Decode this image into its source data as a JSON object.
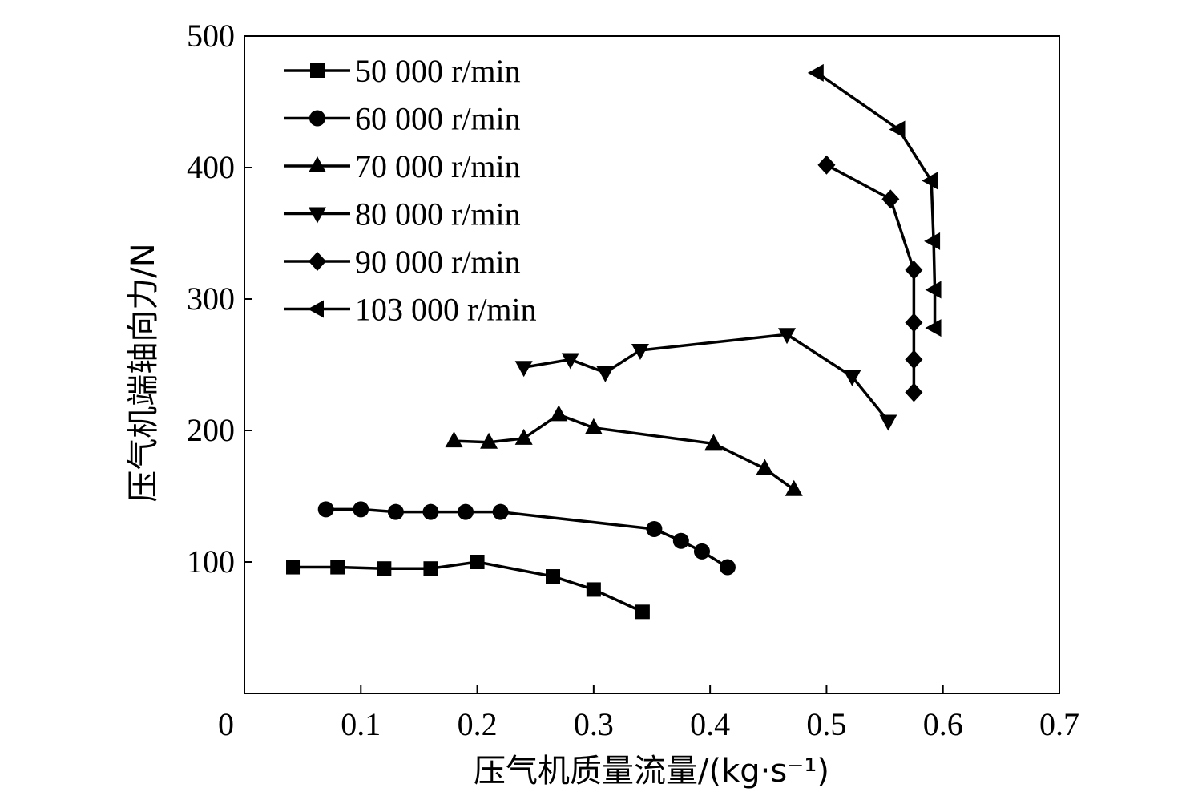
{
  "chart_data": {
    "type": "line",
    "xlabel": "压气机质量流量/(kg·s⁻¹)",
    "ylabel": "压气机端轴向力/N",
    "xlim": [
      0,
      0.7
    ],
    "ylim": [
      0,
      500
    ],
    "x_ticks": [
      "0",
      "0.1",
      "0.2",
      "0.3",
      "0.4",
      "0.5",
      "0.6",
      "0.7"
    ],
    "y_ticks": [
      "100",
      "200",
      "300",
      "400",
      "500"
    ],
    "grid": false,
    "legend_position": "top-left",
    "series": [
      {
        "name": "50 000 r/min",
        "marker": "square",
        "x": [
          0.042,
          0.08,
          0.12,
          0.16,
          0.2,
          0.265,
          0.3,
          0.342
        ],
        "y": [
          96,
          96,
          95,
          95,
          100,
          89,
          79,
          62
        ]
      },
      {
        "name": "60 000 r/min",
        "marker": "circle",
        "x": [
          0.07,
          0.1,
          0.13,
          0.16,
          0.19,
          0.22,
          0.352,
          0.375,
          0.393,
          0.415
        ],
        "y": [
          140,
          140,
          138,
          138,
          138,
          138,
          125,
          116,
          108,
          96
        ]
      },
      {
        "name": "70 000 r/min",
        "marker": "triangle-up",
        "x": [
          0.18,
          0.21,
          0.24,
          0.27,
          0.3,
          0.403,
          0.447,
          0.472
        ],
        "y": [
          192,
          191,
          194,
          212,
          202,
          190,
          171,
          155
        ]
      },
      {
        "name": "80 000 r/min",
        "marker": "triangle-down",
        "x": [
          0.24,
          0.28,
          0.31,
          0.34,
          0.466,
          0.522,
          0.553
        ],
        "y": [
          248,
          254,
          244,
          261,
          273,
          241,
          207
        ]
      },
      {
        "name": "90 000 r/min",
        "marker": "diamond",
        "x": [
          0.5,
          0.555,
          0.575,
          0.575,
          0.575,
          0.575
        ],
        "y": [
          402,
          376,
          322,
          282,
          254,
          229
        ]
      },
      {
        "name": "103 000 r/min",
        "marker": "triangle-left",
        "x": [
          0.492,
          0.562,
          0.59,
          0.592,
          0.593,
          0.593
        ],
        "y": [
          472,
          429,
          390,
          344,
          307,
          278
        ]
      }
    ]
  }
}
